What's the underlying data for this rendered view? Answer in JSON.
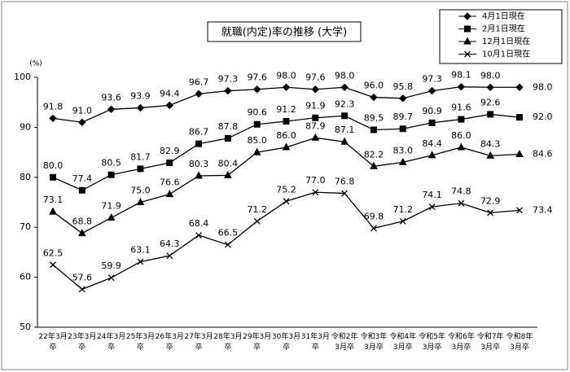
{
  "chart_data": {
    "type": "line",
    "title": "就職(内定)率の推移 (大学)",
    "ylabel": "(%)",
    "categories": [
      "22年3月\n卒",
      "23年3月\n卒",
      "24年3月\n卒",
      "25年3月\n卒",
      "26年3月\n卒",
      "27年3月\n卒",
      "28年3月\n卒",
      "29年3月\n卒",
      "30年3月\n卒",
      "31年3月\n卒",
      "令和2年\n3月卒",
      "令和3年\n3月卒",
      "令和4年\n3月卒",
      "令和5年\n3月卒",
      "令和6年\n3月卒",
      "令和7年\n3月卒",
      "令和8年\n3月卒"
    ],
    "series": [
      {
        "name": "4月1日現在",
        "color": "#000000",
        "marker": "diamond",
        "values": [
          91.8,
          91.0,
          93.6,
          93.9,
          94.4,
          96.7,
          97.3,
          97.6,
          98.0,
          97.6,
          98.0,
          96.0,
          95.8,
          97.3,
          98.1,
          98.0,
          98.0
        ],
        "value_labels": [
          "91.8",
          "91.0",
          "93.6",
          "93.9",
          "94.4",
          "96.7",
          "97.3",
          "97.6",
          "98.0",
          "97.6",
          "98.0",
          "96.0",
          "95.8",
          "97.3",
          "98.1",
          "98.0",
          "98.0"
        ]
      },
      {
        "name": "2月1日現在",
        "color": "#000000",
        "marker": "square",
        "values": [
          80.0,
          77.4,
          80.5,
          81.7,
          82.9,
          86.7,
          87.8,
          90.6,
          91.2,
          91.9,
          92.3,
          89.5,
          89.7,
          90.9,
          91.6,
          92.6,
          92.0
        ],
        "value_labels": [
          "80.0",
          "77.4",
          "80.5",
          "81.7",
          "82.9",
          "86.7",
          "87.8",
          "90.6",
          "91.2",
          "91.9",
          "92.3",
          "89.5",
          "89.7",
          "90.9",
          "91.6",
          "92.6",
          "92.0"
        ]
      },
      {
        "name": "12月1日現在",
        "color": "#000000",
        "marker": "triangle",
        "values": [
          73.1,
          68.8,
          71.9,
          75.0,
          76.6,
          80.3,
          80.4,
          85.0,
          86.0,
          87.9,
          87.1,
          82.2,
          83.0,
          84.4,
          86.0,
          84.3,
          84.6
        ],
        "value_labels": [
          "73.1",
          "68.8",
          "71.9",
          "75.0",
          "76.6",
          "80.3",
          "80.4",
          "85.0",
          "86.0",
          "87.9",
          "87.1",
          "82.2",
          "83.0",
          "84.4",
          "86.0",
          "84.3",
          "84.6"
        ]
      },
      {
        "name": "10月1日現在",
        "color": "#000000",
        "marker": "x",
        "values": [
          62.5,
          57.6,
          59.9,
          63.1,
          64.3,
          68.4,
          66.5,
          71.2,
          75.2,
          77.0,
          76.8,
          69.8,
          71.2,
          74.1,
          74.8,
          72.9,
          73.4
        ],
        "value_labels": [
          "62.5",
          "57.6",
          "59.9",
          "63.1",
          "64.3",
          "68.4",
          "66.5",
          "71.2",
          "75.2",
          "77.0",
          "76.8",
          "69.8",
          "71.2",
          "74.1",
          "74.8",
          "72.9",
          "73.4"
        ]
      }
    ],
    "ylim": [
      50,
      100
    ],
    "yticks": [
      50,
      60,
      70,
      80,
      90,
      100
    ],
    "grid": false,
    "legend": "upper right"
  }
}
